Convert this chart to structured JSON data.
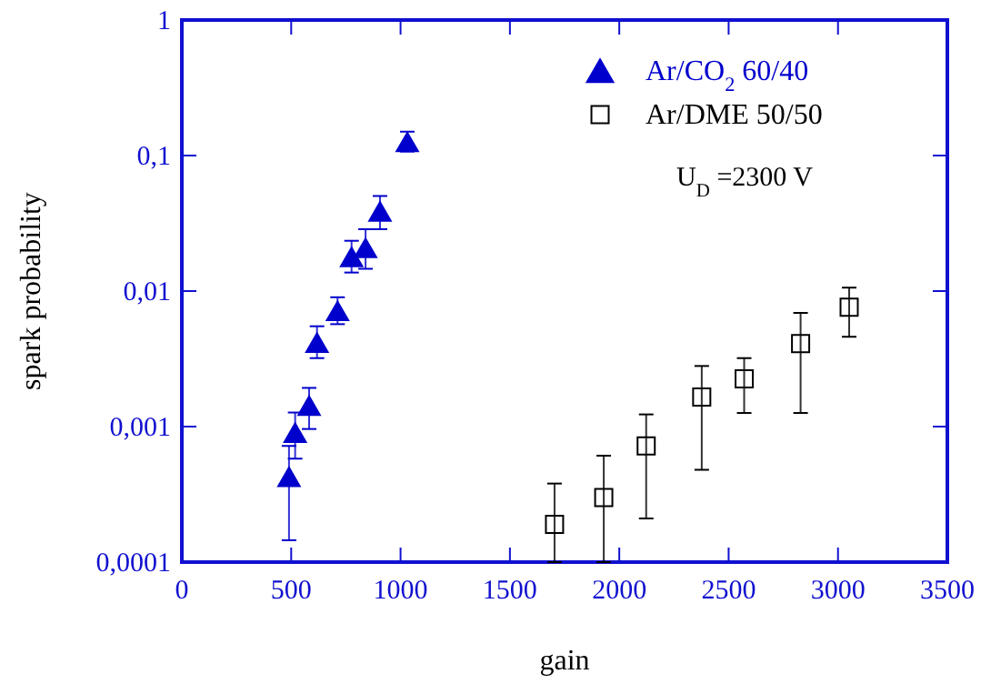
{
  "chart_data": {
    "type": "scatter",
    "xlabel": "gain",
    "ylabel": "spark probability",
    "log": "y",
    "xlim": [
      0,
      3500
    ],
    "xticks": [
      0,
      500,
      1000,
      1500,
      2000,
      2500,
      3000,
      3500
    ],
    "ylim": [
      0.0001,
      1
    ],
    "yticks": [
      {
        "value": 0.0001,
        "label": "0,0001"
      },
      {
        "value": 0.001,
        "label": "0,001"
      },
      {
        "value": 0.01,
        "label": "0,01"
      },
      {
        "value": 0.1,
        "label": "0,1"
      },
      {
        "value": 1,
        "label": "1"
      }
    ],
    "grid": false,
    "legend": "top right",
    "annotations": [
      "U$_{D}$ =2300 V"
    ],
    "series": [
      {
        "name": "Ar/CO$_{2}$ 60/40",
        "color": "#0000cc",
        "marker": "triangle",
        "x": [
          490,
          518,
          582,
          618,
          712,
          776,
          840,
          906,
          1031
        ],
        "values": [
          0.00043,
          0.00091,
          0.00144,
          0.0042,
          0.0072,
          0.018,
          0.021,
          0.039,
          0.127
        ],
        "errors": [
          [
            0.000145,
            0.00072
          ],
          [
            0.00058,
            0.00127
          ],
          [
            0.00096,
            0.00193
          ],
          [
            0.0032,
            0.0055
          ],
          [
            0.0057,
            0.009
          ],
          [
            0.0137,
            0.0235
          ],
          [
            0.0146,
            0.0286
          ],
          [
            0.0286,
            0.0503
          ],
          [
            0.107,
            0.15
          ]
        ]
      },
      {
        "name": "Ar/DME 50/50",
        "color": "#000000",
        "marker": "square",
        "x": [
          1704,
          1929,
          2123,
          2377,
          2571,
          2829,
          3051
        ],
        "values": [
          0.00019,
          0.0003,
          0.00072,
          0.00165,
          0.00225,
          0.0041,
          0.0076
        ],
        "errors": [
          [
            0.0001,
            0.00038
          ],
          [
            0.0001,
            0.00061
          ],
          [
            0.00021,
            0.00123
          ],
          [
            0.00048,
            0.0028
          ],
          [
            0.00126,
            0.0032
          ],
          [
            0.00126,
            0.0069
          ],
          [
            0.0046,
            0.0106
          ]
        ]
      }
    ]
  }
}
